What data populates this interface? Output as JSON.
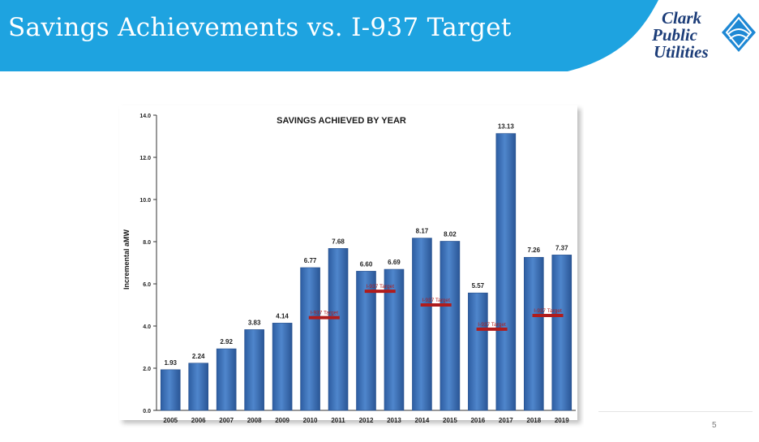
{
  "slide": {
    "title": "Savings Achievements vs. I-937 Target",
    "page_number": "5",
    "banner_color": "#1ea3e0"
  },
  "logo": {
    "line1": "Clark",
    "line2": "Public",
    "line3": "Utilities",
    "text_color": "#1b3c78",
    "mark_color": "#1e88d4"
  },
  "chart_data": {
    "type": "bar",
    "title": "SAVINGS ACHIEVED BY YEAR",
    "ylabel": "Incremental aMW",
    "xlabel": "",
    "ylim": [
      0,
      14
    ],
    "yticks": [
      0,
      2,
      4,
      6,
      8,
      10,
      12,
      14
    ],
    "ytick_labels": [
      "0.0",
      "2.0",
      "4.0",
      "6.0",
      "8.0",
      "10.0",
      "12.0",
      "14.0"
    ],
    "categories": [
      "2005",
      "2006",
      "2007",
      "2008",
      "2009",
      "2010",
      "2011",
      "2012",
      "2013",
      "2014",
      "2015",
      "2016",
      "2017",
      "2018",
      "2019"
    ],
    "values": [
      1.93,
      2.24,
      2.92,
      3.83,
      4.14,
      6.77,
      7.68,
      6.6,
      6.69,
      8.17,
      8.02,
      5.57,
      13.13,
      7.26,
      7.37
    ],
    "value_labels": [
      "1.93",
      "2.24",
      "2.92",
      "3.83",
      "4.14",
      "6.77",
      "7.68",
      "6.60",
      "6.69",
      "8.17",
      "8.02",
      "5.57",
      "13.13",
      "7.26",
      "7.37"
    ],
    "bar_color": "#3a6eb5",
    "grid": false,
    "targets": [
      {
        "label": "I-937 Target",
        "years": [
          "2010",
          "2011"
        ],
        "value": 4.4
      },
      {
        "label": "I-937 Target",
        "years": [
          "2012",
          "2013"
        ],
        "value": 5.65
      },
      {
        "label": "I-937 Target",
        "years": [
          "2014",
          "2015"
        ],
        "value": 5.0
      },
      {
        "label": "I-937 Target",
        "years": [
          "2016",
          "2017"
        ],
        "value": 3.85
      },
      {
        "label": "I-937 Target",
        "years": [
          "2018",
          "2019"
        ],
        "value": 4.5
      }
    ],
    "target_color": "#b01c1c"
  }
}
